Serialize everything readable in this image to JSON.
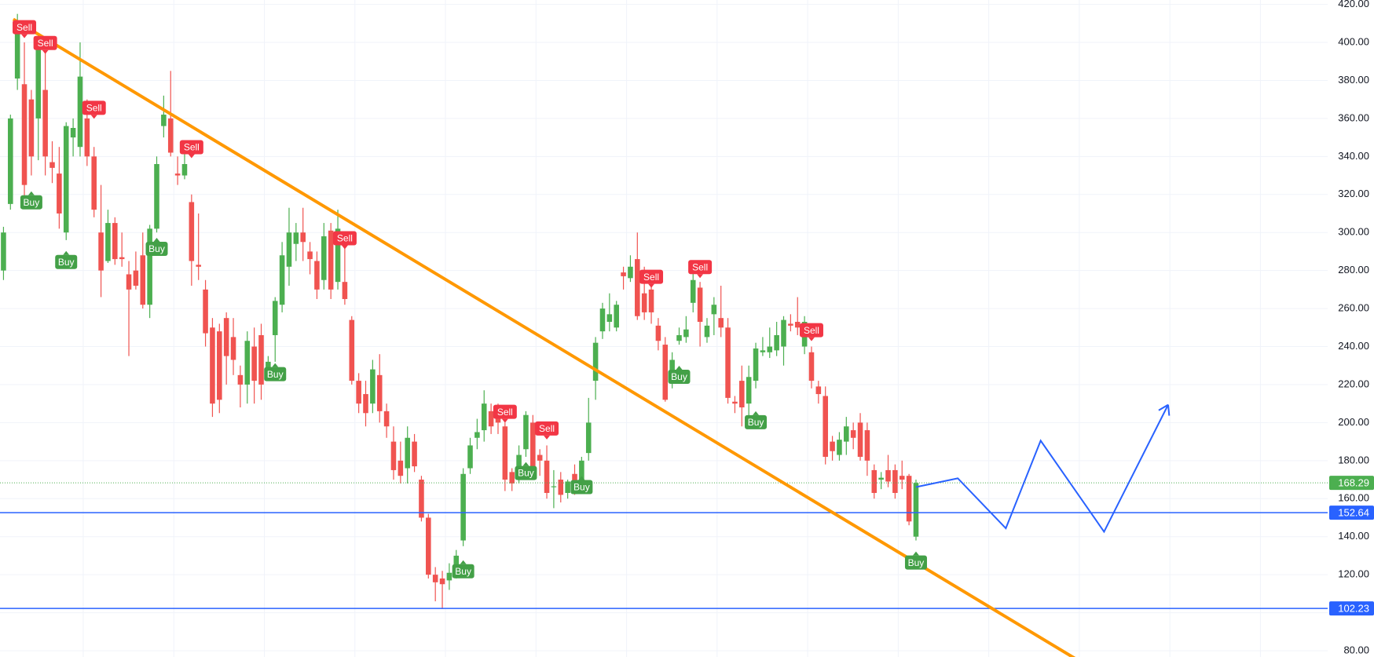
{
  "chart_data": {
    "type": "candlestick",
    "up_color": "#4caf50",
    "down_color": "#f05350",
    "open": [
      280,
      315,
      381,
      378,
      370,
      360,
      375,
      337,
      331,
      300,
      350,
      345,
      360,
      340,
      300,
      285,
      305,
      287,
      278,
      280,
      288,
      262,
      302,
      356,
      360,
      331,
      330,
      316,
      283,
      270,
      250,
      248,
      255,
      245,
      225,
      220,
      240,
      246,
      226,
      246,
      262,
      282,
      294,
      300,
      290,
      285,
      275,
      301,
      274,
      274,
      254,
      222,
      215,
      210,
      225,
      206,
      190,
      180,
      176,
      190,
      170,
      150,
      120,
      118,
      117,
      122,
      138,
      176,
      192,
      196,
      206,
      207,
      198,
      174,
      172,
      186,
      200,
      183,
      180,
      166,
      170,
      163,
      173,
      170,
      184,
      222,
      248,
      253,
      250,
      279,
      276,
      286,
      268,
      270,
      251,
      241,
      221,
      243,
      245,
      263,
      271,
      245,
      257,
      255,
      250,
      211,
      222,
      210,
      222,
      237,
      237,
      238,
      240,
      252,
      253,
      240,
      237,
      219,
      214,
      190,
      183,
      190,
      196,
      200,
      196,
      175,
      170,
      175,
      175,
      172,
      172,
      140
    ],
    "high": [
      303,
      362,
      415,
      400,
      375,
      405,
      395,
      348,
      345,
      358,
      360,
      400,
      370,
      345,
      325,
      312,
      308,
      300,
      285,
      290,
      300,
      304,
      340,
      372,
      385,
      340,
      345,
      320,
      310,
      275,
      255,
      252,
      258,
      255,
      230,
      248,
      250,
      252,
      235,
      266,
      295,
      313,
      305,
      313,
      295,
      290,
      305,
      305,
      312,
      296,
      256,
      226,
      222,
      233,
      236,
      210,
      198,
      190,
      198,
      194,
      172,
      152,
      124,
      122,
      126,
      133,
      176,
      192,
      202,
      217,
      210,
      210,
      200,
      176,
      188,
      206,
      204,
      186,
      188,
      175,
      174,
      170,
      178,
      182,
      213,
      245,
      263,
      268,
      264,
      282,
      288,
      300,
      282,
      274,
      255,
      245,
      237,
      250,
      256,
      280,
      274,
      255,
      266,
      272,
      255,
      214,
      230,
      230,
      242,
      245,
      250,
      253,
      256,
      257,
      266,
      256,
      240,
      222,
      219,
      193,
      195,
      203,
      200,
      205,
      200,
      178,
      174,
      183,
      178,
      180,
      173,
      170
    ],
    "low": [
      275,
      312,
      375,
      318,
      330,
      338,
      330,
      326,
      302,
      296,
      340,
      340,
      335,
      308,
      266,
      284,
      283,
      282,
      235,
      270,
      260,
      255,
      300,
      350,
      340,
      325,
      328,
      272,
      275,
      240,
      203,
      205,
      220,
      225,
      208,
      210,
      210,
      212,
      222,
      232,
      258,
      272,
      285,
      285,
      278,
      265,
      270,
      265,
      270,
      262,
      220,
      205,
      198,
      205,
      200,
      192,
      170,
      168,
      168,
      174,
      148,
      118,
      106,
      102,
      112,
      118,
      135,
      173,
      186,
      190,
      194,
      194,
      164,
      164,
      168,
      182,
      170,
      172,
      160,
      155,
      158,
      160,
      162,
      168,
      180,
      212,
      244,
      248,
      248,
      270,
      274,
      254,
      254,
      252,
      238,
      211,
      218,
      241,
      242,
      258,
      240,
      242,
      246,
      245,
      210,
      205,
      198,
      203,
      218,
      235,
      234,
      235,
      230,
      248,
      246,
      236,
      218,
      210,
      178,
      180,
      180,
      183,
      186,
      180,
      172,
      160,
      165,
      166,
      160,
      165,
      146,
      138
    ],
    "close": [
      300,
      360,
      410,
      325,
      340,
      398,
      340,
      334,
      310,
      356,
      355,
      382,
      340,
      312,
      280,
      305,
      286,
      286,
      270,
      272,
      262,
      302,
      336,
      362,
      342,
      330,
      336,
      285,
      282,
      247,
      210,
      212,
      235,
      233,
      220,
      243,
      222,
      220,
      232,
      264,
      288,
      300,
      300,
      295,
      286,
      270,
      298,
      270,
      302,
      265,
      222,
      210,
      205,
      228,
      206,
      198,
      175,
      172,
      192,
      177,
      150,
      120,
      116,
      115,
      121,
      130,
      173,
      188,
      195,
      210,
      198,
      200,
      170,
      168,
      183,
      204,
      175,
      180,
      163,
      166.5,
      162,
      169,
      166,
      180,
      200,
      242,
      260,
      257,
      262,
      277,
      282,
      256,
      258,
      258,
      243,
      212,
      233,
      246,
      249,
      275,
      253,
      251,
      262,
      250,
      213,
      210,
      208,
      224,
      239,
      238,
      240,
      246,
      254,
      251,
      250,
      253,
      222,
      215,
      182,
      185,
      191,
      198,
      192,
      182,
      180,
      163,
      171,
      169,
      163,
      170,
      148,
      168.29
    ],
    "xlim": [
      -0.5,
      190.1
    ],
    "ylim": [
      76.7,
      422.3
    ],
    "yticks": [
      {
        "value": 80,
        "label": "80.00"
      },
      {
        "value": 100,
        "label": "100.00"
      },
      {
        "value": 120,
        "label": "120.00"
      },
      {
        "value": 140,
        "label": "140.00"
      },
      {
        "value": 160,
        "label": "160.00"
      },
      {
        "value": 180,
        "label": "180.00"
      },
      {
        "value": 200,
        "label": "200.00"
      },
      {
        "value": 220,
        "label": "220.00"
      },
      {
        "value": 240,
        "label": "240.00"
      },
      {
        "value": 260,
        "label": "260.00"
      },
      {
        "value": 280,
        "label": "280.00"
      },
      {
        "value": 300,
        "label": "300.00"
      },
      {
        "value": 320,
        "label": "320.00"
      },
      {
        "value": 340,
        "label": "340.00"
      },
      {
        "value": 360,
        "label": "360.00"
      },
      {
        "value": 380,
        "label": "380.00"
      },
      {
        "value": 400,
        "label": "400.00"
      },
      {
        "value": 420,
        "label": "420.00"
      }
    ],
    "grid": true,
    "levels": [
      {
        "value": 168.29,
        "color": "#4caf50",
        "style": "dotted"
      },
      {
        "value": 152.64,
        "color": "#2962ff",
        "style": "solid"
      },
      {
        "value": 102.23,
        "color": "#2962ff",
        "style": "solid"
      }
    ],
    "lines": [
      {
        "color": "#ff9800",
        "width": 4,
        "x": [
          1.4,
          155.8
        ],
        "values": [
          412.2,
          71.6
        ]
      },
      {
        "color": "#2962ff",
        "width": 2,
        "arrow": true,
        "x": [
          131,
          137,
          143.9,
          148.9,
          158,
          167.2
        ],
        "values": [
          166.1,
          170.7,
          144.4,
          190.5,
          142.6,
          209.4
        ]
      }
    ],
    "signals": [
      {
        "label": "Sell",
        "x": 3,
        "value": 408.0
      },
      {
        "label": "Sell",
        "x": 6,
        "value": 399.7
      },
      {
        "label": "Buy",
        "x": 4,
        "value": 315.9
      },
      {
        "label": "Buy",
        "x": 9,
        "value": 284.5
      },
      {
        "label": "Sell",
        "x": 13,
        "value": 365.6
      },
      {
        "label": "Sell",
        "x": 27,
        "value": 344.9
      },
      {
        "label": "Buy",
        "x": 22,
        "value": 291.4
      },
      {
        "label": "Sell",
        "x": 49,
        "value": 297.0
      },
      {
        "label": "Buy",
        "x": 39,
        "value": 225.5
      },
      {
        "label": "Sell",
        "x": 72,
        "value": 205.7
      },
      {
        "label": "Sell",
        "x": 78,
        "value": 196.9
      },
      {
        "label": "Buy",
        "x": 75,
        "value": 173.5
      },
      {
        "label": "Buy",
        "x": 83,
        "value": 166.1
      },
      {
        "label": "Buy",
        "x": 66,
        "value": 121.8
      },
      {
        "label": "Sell",
        "x": 93,
        "value": 276.7
      },
      {
        "label": "Sell",
        "x": 100,
        "value": 281.8
      },
      {
        "label": "Buy",
        "x": 97,
        "value": 224.1
      },
      {
        "label": "Buy",
        "x": 108,
        "value": 200.2
      },
      {
        "label": "Sell",
        "x": 116,
        "value": 248.6
      },
      {
        "label": "Buy",
        "x": 131,
        "value": 126.4
      }
    ]
  }
}
